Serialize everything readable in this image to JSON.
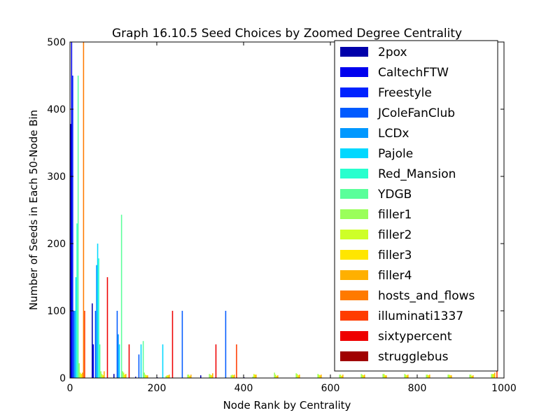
{
  "chart_data": {
    "type": "bar",
    "title": "Graph 16.10.5 Seed Choices by Zoomed Degree Centrality",
    "xlabel": "Node Rank by Centrality",
    "ylabel": "Number of Seeds in Each 50-Node Bin",
    "xlim": [
      0,
      1000
    ],
    "ylim": [
      0,
      500
    ],
    "x_ticks": [
      0,
      200,
      400,
      600,
      800,
      1000
    ],
    "y_ticks": [
      0,
      100,
      200,
      300,
      400,
      500
    ],
    "grid": false,
    "legend_position": "top-right",
    "bin_starts": [
      0,
      50,
      100,
      150,
      200,
      250,
      300,
      350,
      400,
      450,
      500,
      550,
      600,
      650,
      700,
      750,
      800,
      850,
      900,
      950
    ],
    "series": [
      {
        "name": "2pox",
        "color": "#0000aa",
        "values": [
          378,
          111,
          6,
          2,
          1,
          0,
          4,
          0,
          1,
          0,
          0,
          0,
          0,
          0,
          0,
          0,
          0,
          0,
          0,
          0
        ]
      },
      {
        "name": "CaltechFTW",
        "color": "#0000ee",
        "values": [
          500,
          50,
          0,
          0,
          0,
          0,
          0,
          0,
          0,
          0,
          0,
          0,
          0,
          0,
          0,
          0,
          0,
          0,
          0,
          0
        ]
      },
      {
        "name": "Freestyle",
        "color": "#0022ff",
        "values": [
          450,
          0,
          0,
          0,
          0,
          0,
          0,
          0,
          0,
          0,
          0,
          0,
          0,
          0,
          0,
          0,
          0,
          0,
          0,
          0
        ]
      },
      {
        "name": "JColeFanClub",
        "color": "#005aff",
        "values": [
          100,
          100,
          100,
          35,
          0,
          100,
          0,
          100,
          0,
          0,
          0,
          0,
          0,
          0,
          0,
          0,
          0,
          0,
          0,
          0
        ]
      },
      {
        "name": "LCDx",
        "color": "#0098ff",
        "values": [
          100,
          168,
          65,
          0,
          0,
          0,
          0,
          0,
          0,
          0,
          0,
          0,
          0,
          0,
          0,
          0,
          0,
          0,
          0,
          0
        ]
      },
      {
        "name": "Pajole",
        "color": "#00d8ff",
        "values": [
          150,
          200,
          50,
          50,
          50,
          0,
          0,
          0,
          0,
          0,
          0,
          0,
          0,
          0,
          0,
          0,
          0,
          0,
          0,
          0
        ]
      },
      {
        "name": "Red_Mansion",
        "color": "#28ffce",
        "values": [
          230,
          178,
          0,
          0,
          0,
          0,
          0,
          0,
          0,
          0,
          0,
          0,
          0,
          0,
          0,
          0,
          0,
          0,
          0,
          0
        ]
      },
      {
        "name": "YDGB",
        "color": "#5aff9a",
        "values": [
          450,
          50,
          243,
          55,
          0,
          0,
          0,
          0,
          0,
          0,
          0,
          0,
          0,
          0,
          0,
          0,
          0,
          0,
          0,
          0
        ]
      },
      {
        "name": "filler1",
        "color": "#9aff5a",
        "values": [
          22,
          10,
          10,
          8,
          3,
          5,
          6,
          4,
          2,
          8,
          7,
          6,
          5,
          6,
          6,
          6,
          5,
          5,
          5,
          6
        ]
      },
      {
        "name": "filler2",
        "color": "#ceff28",
        "values": [
          8,
          6,
          8,
          5,
          4,
          5,
          5,
          5,
          6,
          5,
          6,
          5,
          5,
          5,
          6,
          5,
          5,
          5,
          5,
          6
        ]
      },
      {
        "name": "filler3",
        "color": "#ffe600",
        "values": [
          6,
          4,
          5,
          4,
          4,
          3,
          4,
          4,
          5,
          3,
          4,
          4,
          3,
          4,
          4,
          4,
          4,
          4,
          3,
          6
        ]
      },
      {
        "name": "filler4",
        "color": "#ffb000",
        "values": [
          8,
          10,
          6,
          4,
          5,
          5,
          7,
          5,
          5,
          4,
          5,
          5,
          5,
          5,
          4,
          5,
          5,
          4,
          4,
          8
        ]
      },
      {
        "name": "hosts_and_flows",
        "color": "#ff7a00",
        "values": [
          500,
          0,
          0,
          0,
          0,
          0,
          0,
          0,
          0,
          0,
          0,
          0,
          0,
          0,
          0,
          0,
          0,
          0,
          0,
          0
        ]
      },
      {
        "name": "illuminati1337",
        "color": "#ff3c00",
        "values": [
          100,
          0,
          0,
          0,
          0,
          0,
          0,
          50,
          0,
          0,
          0,
          0,
          0,
          0,
          0,
          0,
          0,
          0,
          0,
          150
        ]
      },
      {
        "name": "sixtypercent",
        "color": "#ee0000",
        "values": [
          0,
          150,
          50,
          0,
          100,
          0,
          50,
          0,
          0,
          0,
          0,
          0,
          0,
          0,
          0,
          0,
          0,
          0,
          0,
          0
        ]
      },
      {
        "name": "strugglebus",
        "color": "#a00000",
        "values": [
          0,
          0,
          0,
          0,
          0,
          0,
          0,
          0,
          0,
          0,
          0,
          0,
          0,
          0,
          0,
          0,
          0,
          0,
          0,
          0
        ]
      }
    ]
  }
}
